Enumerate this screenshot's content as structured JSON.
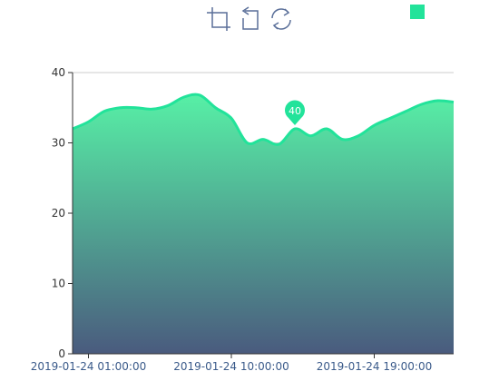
{
  "toolbar": {
    "icons": [
      "zoom-icon",
      "zoom-reset-icon",
      "restore-icon"
    ]
  },
  "legend": {
    "placement": "top-right",
    "color": "#22e39a",
    "label": ""
  },
  "chart_data": {
    "type": "area",
    "title": "",
    "xlabel": "",
    "ylabel": "",
    "ylim": [
      0,
      40
    ],
    "yticks": [
      0,
      10,
      20,
      30,
      40
    ],
    "grid": true,
    "x_tick_labels": [
      {
        "label": "2019-01-24 01:00:00",
        "hour": 1
      },
      {
        "label": "2019-01-24 10:00:00",
        "hour": 10
      },
      {
        "label": "2019-01-24 19:00:00",
        "hour": 19
      }
    ],
    "x_hours": [
      0,
      1,
      2,
      3,
      4,
      5,
      6,
      7,
      8,
      9,
      10,
      11,
      12,
      13,
      14,
      15,
      16,
      17,
      18,
      19,
      20,
      21,
      22,
      23,
      24
    ],
    "series": [
      {
        "values": [
          32,
          33,
          34.5,
          35,
          35,
          34.8,
          35.3,
          36.5,
          36.8,
          35,
          33.5,
          30,
          30.5,
          29.8,
          32,
          31,
          32,
          30.5,
          31,
          32.5,
          33.5,
          34.5,
          35.5,
          36,
          35.8
        ],
        "line_color": "#22e39a",
        "area_top_color": "#57f0a6",
        "area_bottom_color": "#4a5b7e"
      }
    ],
    "markPoint": {
      "label": "40",
      "hour": 14,
      "value": 32,
      "color": "#22e39a"
    },
    "colors": {
      "axis": "#333333",
      "grid": "#cccccc"
    }
  }
}
